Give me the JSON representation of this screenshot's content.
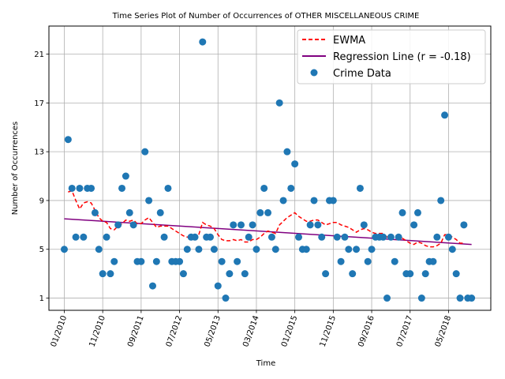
{
  "chart_data": {
    "type": "scatter",
    "title": "Time Series Plot of Number of Occurrences of OTHER MISCELLANEOUS CRIME",
    "xlabel": "Time",
    "ylabel": "Number of Occurrences",
    "x_tick_labels": [
      "01/2010",
      "11/2010",
      "09/2011",
      "07/2012",
      "05/2013",
      "03/2014",
      "01/2015",
      "11/2015",
      "09/2016",
      "07/2017",
      "05/2018"
    ],
    "y_ticks": [
      1,
      5,
      9,
      13,
      17,
      21
    ],
    "ylim": [
      0,
      23.3
    ],
    "xlim_month_index": [
      -4,
      111
    ],
    "grid": true,
    "legend_position": "upper right",
    "legend": {
      "ewma": "EWMA",
      "regression": "Regression Line (r = -0.18)",
      "scatter": "Crime Data"
    },
    "colors": {
      "scatter": "#1f77b4",
      "ewma": "#ff0000",
      "regression": "#800080"
    },
    "series": [
      {
        "name": "Crime Data",
        "type": "scatter",
        "x": [
          0,
          1,
          2,
          3,
          4,
          5,
          6,
          7,
          8,
          9,
          10,
          11,
          12,
          13,
          14,
          15,
          16,
          17,
          18,
          19,
          20,
          21,
          22,
          23,
          24,
          25,
          26,
          27,
          28,
          29,
          30,
          31,
          32,
          33,
          34,
          35,
          36,
          37,
          38,
          39,
          40,
          41,
          42,
          43,
          44,
          45,
          46,
          47,
          48,
          49,
          50,
          51,
          52,
          53,
          54,
          55,
          56,
          57,
          58,
          59,
          60,
          61,
          62,
          63,
          64,
          65,
          66,
          67,
          68,
          69,
          70,
          71,
          72,
          73,
          74,
          75,
          76,
          77,
          78,
          79,
          80,
          81,
          82,
          83,
          84,
          85,
          86,
          87,
          88,
          89,
          90,
          91,
          92,
          93,
          94,
          95,
          96,
          97,
          98,
          99,
          100,
          101,
          102,
          103,
          104,
          105,
          106
        ],
        "y": [
          5,
          14,
          10,
          6,
          10,
          6,
          10,
          10,
          8,
          5,
          3,
          6,
          3,
          4,
          7,
          10,
          11,
          8,
          7,
          4,
          4,
          13,
          9,
          2,
          4,
          8,
          6,
          10,
          4,
          4,
          4,
          3,
          5,
          6,
          6,
          5,
          22,
          6,
          6,
          5,
          2,
          4,
          1,
          3,
          7,
          4,
          7,
          3,
          6,
          7,
          5,
          8,
          10,
          8,
          6,
          5,
          17,
          9,
          13,
          10,
          12,
          6,
          5,
          5,
          7,
          9,
          7,
          6,
          3,
          9,
          9,
          6,
          4,
          6,
          5,
          3,
          5,
          10,
          7,
          4,
          5,
          6,
          6,
          6,
          1,
          6,
          4,
          6,
          8,
          3,
          3,
          7,
          8,
          1,
          3,
          4,
          4,
          6,
          9,
          16,
          6,
          5,
          3,
          1,
          7,
          1,
          1
        ]
      },
      {
        "name": "EWMA",
        "type": "line",
        "x": [
          1,
          2,
          3,
          4,
          5,
          6,
          7,
          8,
          9,
          10,
          11,
          12,
          13,
          14,
          15,
          16,
          17,
          18,
          19,
          20,
          21,
          22,
          23,
          24,
          25,
          26,
          27,
          28,
          29,
          30,
          31,
          32,
          33,
          34,
          35,
          36,
          37,
          38,
          39,
          40,
          41,
          42,
          43,
          44,
          45,
          46,
          47,
          48,
          49,
          50,
          51,
          52,
          53,
          54,
          55,
          56,
          57,
          58,
          59,
          60,
          61,
          62,
          63,
          64,
          65,
          66,
          67,
          68,
          69,
          70,
          71,
          72,
          73,
          74,
          75,
          76,
          77,
          78,
          79,
          80,
          81,
          82,
          83,
          84,
          85,
          86,
          87,
          88,
          89,
          90,
          91,
          92,
          93,
          94,
          95,
          96,
          97,
          98,
          99,
          100,
          101,
          102,
          103,
          104
        ],
        "y": [
          9.7,
          9.8,
          9.0,
          8.3,
          8.8,
          8.9,
          8.8,
          8.2,
          7.6,
          7.3,
          7.2,
          6.7,
          6.6,
          6.9,
          7.1,
          7.4,
          7.3,
          7.4,
          7.1,
          7.1,
          7.4,
          7.6,
          7.2,
          6.8,
          6.9,
          6.9,
          6.9,
          6.7,
          6.5,
          6.3,
          6.1,
          6.0,
          6.1,
          6.2,
          6.2,
          7.2,
          7.0,
          6.9,
          6.7,
          6.2,
          5.8,
          5.7,
          5.7,
          5.8,
          5.7,
          5.8,
          5.6,
          5.6,
          5.8,
          5.8,
          6.0,
          6.3,
          6.5,
          6.4,
          6.3,
          7.0,
          7.3,
          7.6,
          7.8,
          8.0,
          7.7,
          7.5,
          7.3,
          7.3,
          7.4,
          7.4,
          7.2,
          7.0,
          7.1,
          7.2,
          7.2,
          7.0,
          6.9,
          6.8,
          6.6,
          6.4,
          6.6,
          6.7,
          6.6,
          6.4,
          6.3,
          6.3,
          6.3,
          6.0,
          5.9,
          5.8,
          5.8,
          5.9,
          5.7,
          5.5,
          5.4,
          5.6,
          5.5,
          5.3,
          5.2,
          5.2,
          5.3,
          5.5,
          6.2,
          6.2,
          6.0,
          5.8,
          5.5,
          5.5
        ]
      },
      {
        "name": "Regression Line (r = -0.18)",
        "type": "line",
        "x": [
          0,
          106
        ],
        "y": [
          7.5,
          5.4
        ]
      }
    ]
  }
}
